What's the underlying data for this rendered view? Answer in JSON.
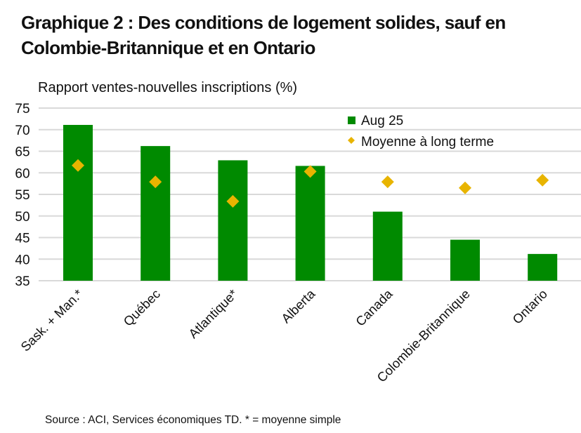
{
  "title": "Graphique 2 : Des conditions de logement solides, sauf en Colombie-Britannique et en Ontario",
  "source": "Source : ACI, Services économiques TD. * = moyenne simple",
  "colors": {
    "bar": "#008A00",
    "marker": "#E8B400",
    "grid": "#D9D9D9",
    "text": "#111111"
  },
  "chart_data": {
    "type": "bar",
    "title": "Graphique 2 : Des conditions de logement solides, sauf en Colombie-Britannique et en Ontario",
    "xlabel": "",
    "ylabel": "Rapport ventes-nouvelles inscriptions (%)",
    "ylim": [
      35,
      75
    ],
    "yticks": [
      35,
      40,
      45,
      50,
      55,
      60,
      65,
      70,
      75
    ],
    "grid": true,
    "legend_position": "top-right",
    "categories": [
      "Sask. + Man.*",
      "Québec",
      "Atlantique*",
      "Alberta",
      "Canada",
      "Colombie-Britannique",
      "Ontario"
    ],
    "series": [
      {
        "name": "Aug 25",
        "kind": "bar",
        "values": [
          71.1,
          66.2,
          62.9,
          61.6,
          51.0,
          44.5,
          41.2
        ]
      },
      {
        "name": "Moyenne à long terme",
        "kind": "marker-diamond",
        "values": [
          61.7,
          57.9,
          53.4,
          60.3,
          57.9,
          56.5,
          58.3
        ]
      }
    ]
  }
}
